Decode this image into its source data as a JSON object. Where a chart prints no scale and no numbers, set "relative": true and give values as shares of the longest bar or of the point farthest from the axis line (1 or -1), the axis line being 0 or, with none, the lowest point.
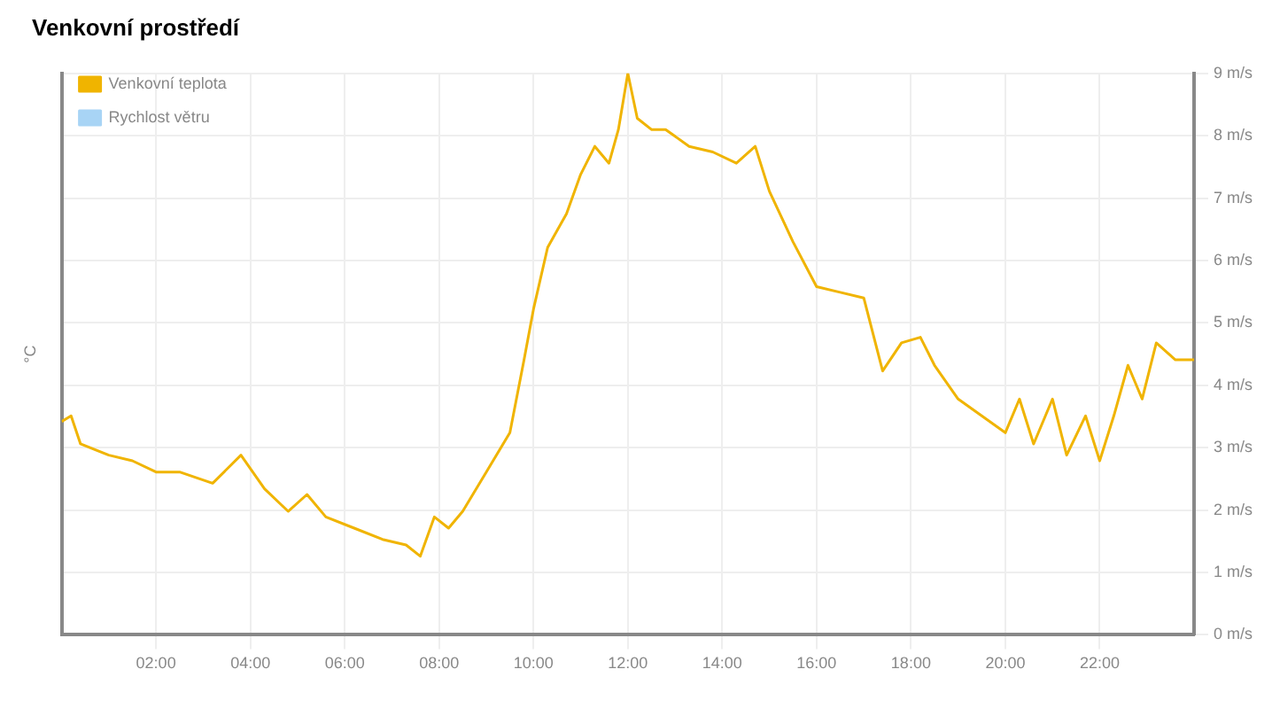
{
  "chart_data": {
    "type": "line",
    "title": "Venkovní prostředí",
    "ylabel": "°C",
    "relative": true,
    "x": [
      0,
      0.2,
      0.4,
      1,
      1.5,
      2,
      2.5,
      3.2,
      3.8,
      4.3,
      4.8,
      5.2,
      5.6,
      6.2,
      6.8,
      7.3,
      7.6,
      7.9,
      8.2,
      8.5,
      9,
      9.5,
      9.8,
      10,
      10.3,
      10.7,
      11,
      11.3,
      11.6,
      11.8,
      12,
      12.2,
      12.5,
      12.8,
      13.3,
      13.8,
      14.3,
      14.7,
      15,
      15.5,
      16,
      16.5,
      17,
      17.4,
      17.8,
      18.2,
      18.5,
      19,
      19.5,
      20,
      20.3,
      20.6,
      21,
      21.3,
      21.7,
      22,
      22.3,
      22.6,
      22.9,
      23.2,
      23.6,
      24
    ],
    "series": [
      {
        "name": "Venkovní teplota",
        "color": "#f0b400",
        "values": [
          0.38,
          0.39,
          0.34,
          0.32,
          0.31,
          0.29,
          0.29,
          0.27,
          0.32,
          0.26,
          0.22,
          0.25,
          0.21,
          0.19,
          0.17,
          0.16,
          0.14,
          0.21,
          0.19,
          0.22,
          0.29,
          0.36,
          0.49,
          0.58,
          0.69,
          0.75,
          0.82,
          0.87,
          0.84,
          0.9,
          1,
          0.92,
          0.9,
          0.9,
          0.87,
          0.86,
          0.84,
          0.87,
          0.79,
          0.7,
          0.62,
          0.61,
          0.6,
          0.47,
          0.52,
          0.53,
          0.48,
          0.42,
          0.39,
          0.36,
          0.42,
          0.34,
          0.42,
          0.32,
          0.39,
          0.31,
          0.39,
          0.48,
          0.42,
          0.52,
          0.49,
          0.49
        ]
      },
      {
        "name": "Rychlost větru",
        "color": "#a8d4f5",
        "values": [
          null,
          null,
          null,
          null,
          null,
          null,
          null,
          null,
          null,
          null,
          null,
          null,
          null,
          null,
          null,
          null,
          null,
          null,
          null,
          null,
          null,
          null,
          null,
          null,
          null,
          null,
          null,
          null,
          null,
          null,
          null,
          null,
          null,
          null,
          null,
          null,
          null,
          null,
          null,
          null,
          null,
          null,
          null,
          null,
          null,
          null,
          null,
          null,
          null,
          null,
          null,
          null,
          null,
          null,
          null,
          null,
          null,
          null,
          null,
          null,
          null,
          null
        ]
      }
    ],
    "xlim": [
      0,
      24
    ],
    "xticks": [
      {
        "value": 2,
        "label": "02:00"
      },
      {
        "value": 4,
        "label": "04:00"
      },
      {
        "value": 6,
        "label": "06:00"
      },
      {
        "value": 8,
        "label": "08:00"
      },
      {
        "value": 10,
        "label": "10:00"
      },
      {
        "value": 12,
        "label": "12:00"
      },
      {
        "value": 14,
        "label": "14:00"
      },
      {
        "value": 16,
        "label": "16:00"
      },
      {
        "value": 18,
        "label": "18:00"
      },
      {
        "value": 20,
        "label": "20:00"
      },
      {
        "value": 22,
        "label": "22:00"
      }
    ],
    "y2lim": [
      0,
      9
    ],
    "y2ticks": [
      {
        "value": 0,
        "label": "0 m/s"
      },
      {
        "value": 1,
        "label": "1 m/s"
      },
      {
        "value": 2,
        "label": "2 m/s"
      },
      {
        "value": 3,
        "label": "3 m/s"
      },
      {
        "value": 4,
        "label": "4 m/s"
      },
      {
        "value": 5,
        "label": "5 m/s"
      },
      {
        "value": 6,
        "label": "6 m/s"
      },
      {
        "value": 7,
        "label": "7 m/s"
      },
      {
        "value": 8,
        "label": "8 m/s"
      },
      {
        "value": 9,
        "label": "9 m/s"
      }
    ],
    "grid": true,
    "legend": "top left",
    "marker": "none",
    "line_style": "solid"
  }
}
